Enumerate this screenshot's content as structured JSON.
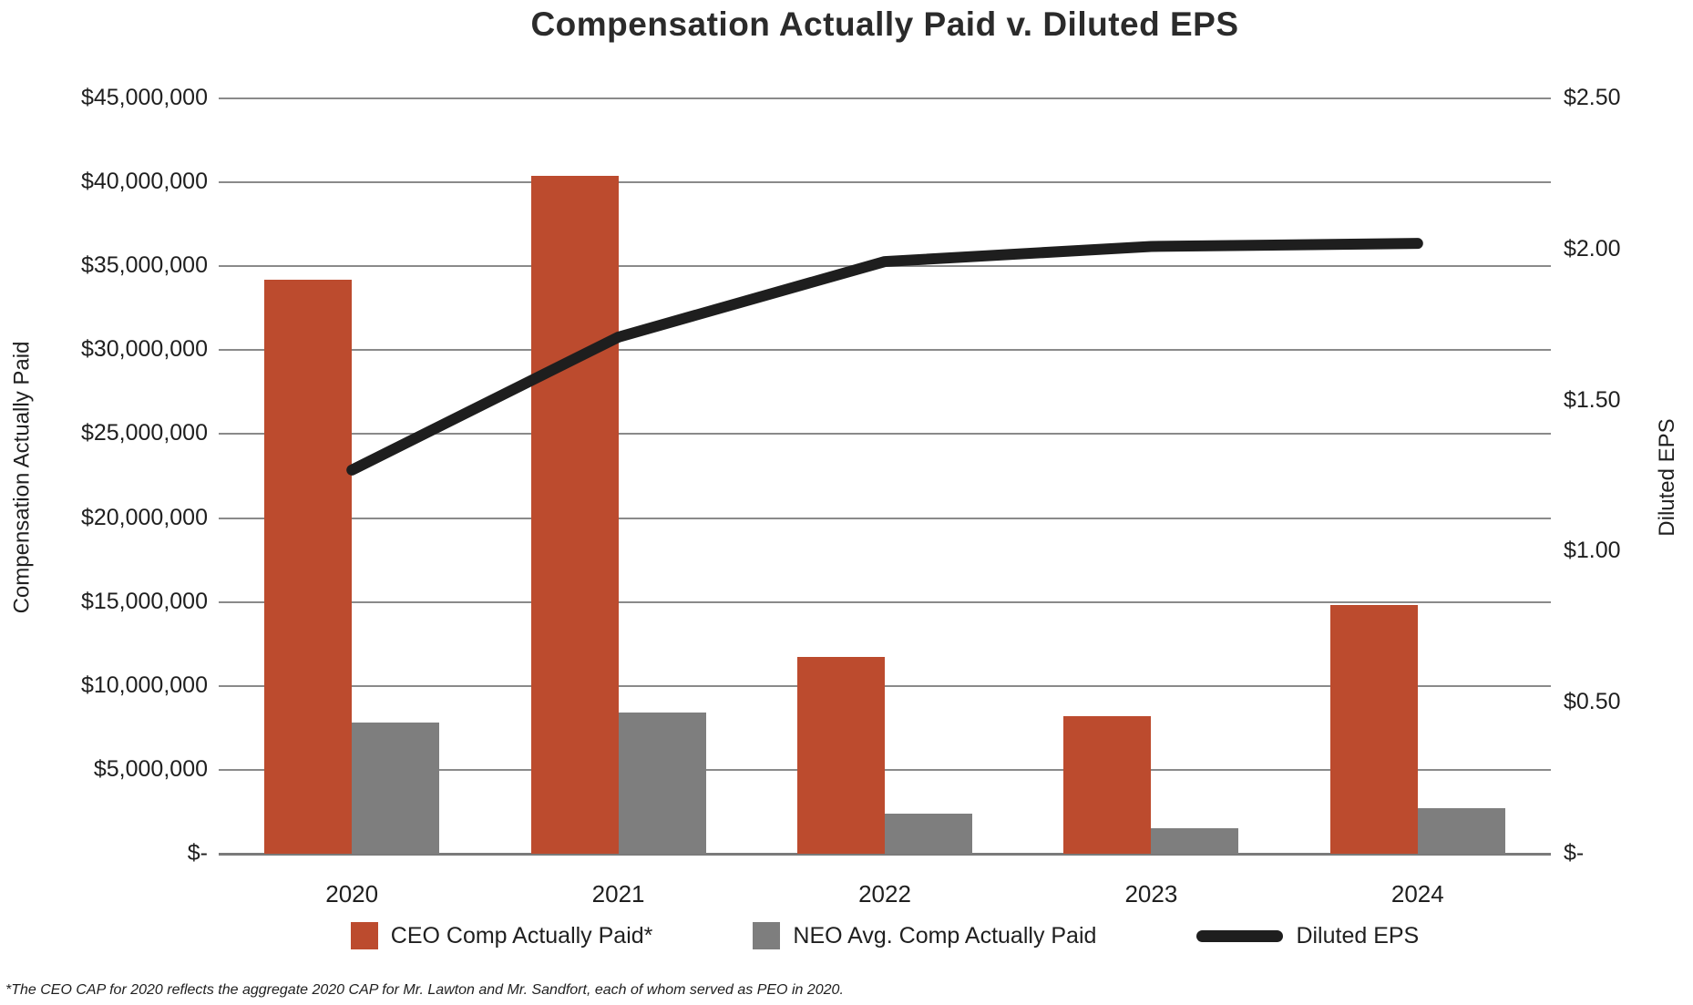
{
  "title": "Compensation Actually Paid v. Diluted EPS",
  "footnote": "*The CEO CAP for 2020 reflects the aggregate 2020 CAP for Mr. Lawton and Mr. Sandfort, each of whom served as PEO in 2020.",
  "colors": {
    "ceo_bar": "#bc4b2e",
    "neo_bar": "#7e7e7e",
    "eps_line": "#1e1e1e",
    "gridline": "#8a8a8a"
  },
  "chart_data": {
    "type": "combo-bar-line",
    "title": "Compensation Actually Paid v. Diluted EPS",
    "categories": [
      "2020",
      "2021",
      "2022",
      "2023",
      "2024"
    ],
    "series": [
      {
        "name": "CEO Comp Actually Paid*",
        "type": "bar",
        "axis": "left",
        "color": "#bc4b2e",
        "values": [
          34200000,
          40400000,
          11700000,
          8200000,
          14800000
        ]
      },
      {
        "name": "NEO Avg. Comp Actually Paid",
        "type": "bar",
        "axis": "left",
        "color": "#7e7e7e",
        "values": [
          7800000,
          8400000,
          2400000,
          1500000,
          2700000
        ]
      },
      {
        "name": "Diluted EPS",
        "type": "line",
        "axis": "right",
        "color": "#1e1e1e",
        "values": [
          1.27,
          1.71,
          1.96,
          2.01,
          2.02
        ]
      }
    ],
    "left_axis": {
      "title": "Compensation Actually Paid",
      "min": 0,
      "max": 45000000,
      "tick_step": 5000000,
      "tick_labels": [
        "$-",
        "$5,000,000",
        "$10,000,000",
        "$15,000,000",
        "$20,000,000",
        "$25,000,000",
        "$30,000,000",
        "$35,000,000",
        "$40,000,000",
        "$45,000,000"
      ]
    },
    "right_axis": {
      "title": "Diluted EPS",
      "min": 0,
      "max": 2.5,
      "tick_step": 0.5,
      "tick_labels": [
        "$-",
        "$0.50",
        "$1.00",
        "$1.50",
        "$2.00",
        "$2.50"
      ]
    },
    "grid": "horizontal",
    "legend_position": "bottom"
  }
}
